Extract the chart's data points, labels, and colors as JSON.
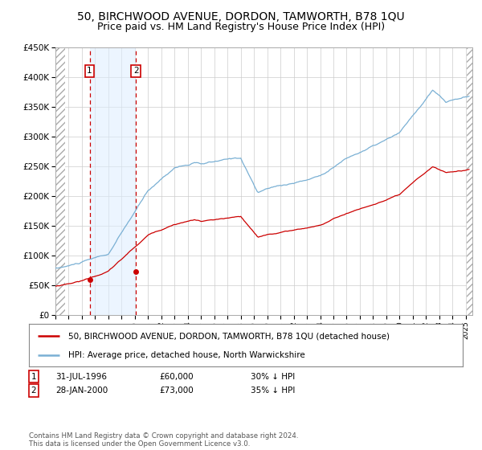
{
  "title": "50, BIRCHWOOD AVENUE, DORDON, TAMWORTH, B78 1QU",
  "subtitle": "Price paid vs. HM Land Registry's House Price Index (HPI)",
  "title_fontsize": 10,
  "subtitle_fontsize": 9,
  "xlim_start": 1994.0,
  "xlim_end": 2025.5,
  "ylim_min": 0,
  "ylim_max": 450000,
  "yticks": [
    0,
    50000,
    100000,
    150000,
    200000,
    250000,
    300000,
    350000,
    400000,
    450000
  ],
  "ytick_labels": [
    "£0",
    "£50K",
    "£100K",
    "£150K",
    "£200K",
    "£250K",
    "£300K",
    "£350K",
    "£400K",
    "£450K"
  ],
  "hpi_color": "#7ab0d4",
  "price_color": "#cc0000",
  "marker_color": "#cc0000",
  "transaction1_date": 1996.58,
  "transaction1_price": 60000,
  "transaction1_label": "1",
  "transaction1_text": "31-JUL-1996",
  "transaction1_price_text": "£60,000",
  "transaction1_hpi_text": "30% ↓ HPI",
  "transaction2_date": 2000.08,
  "transaction2_price": 73000,
  "transaction2_label": "2",
  "transaction2_text": "28-JAN-2000",
  "transaction2_price_text": "£73,000",
  "transaction2_hpi_text": "35% ↓ HPI",
  "legend_line1": "50, BIRCHWOOD AVENUE, DORDON, TAMWORTH, B78 1QU (detached house)",
  "legend_line2": "HPI: Average price, detached house, North Warwickshire",
  "footer_text": "Contains HM Land Registry data © Crown copyright and database right 2024.\nThis data is licensed under the Open Government Licence v3.0.",
  "background_color": "#ffffff",
  "grid_color": "#cccccc",
  "shade_color": "#ddeeff"
}
